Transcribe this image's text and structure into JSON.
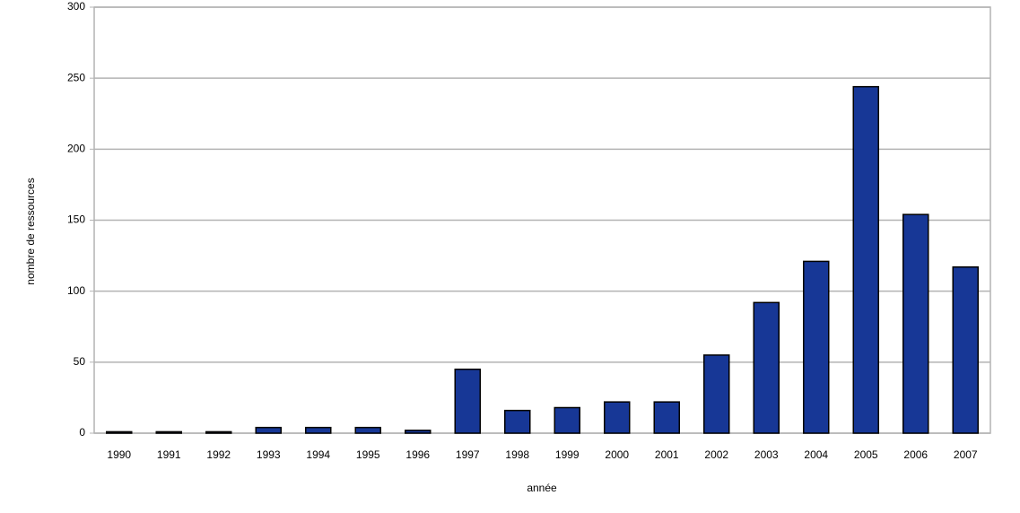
{
  "chart_data": {
    "type": "bar",
    "x_label": "année",
    "y_label": "nombre de ressources",
    "categories": [
      "1990",
      "1991",
      "1992",
      "1993",
      "1994",
      "1995",
      "1996",
      "1997",
      "1998",
      "1999",
      "2000",
      "2001",
      "2002",
      "2003",
      "2004",
      "2005",
      "2006",
      "2007"
    ],
    "values": [
      1,
      1,
      1,
      4,
      4,
      4,
      2,
      45,
      16,
      18,
      22,
      22,
      55,
      92,
      121,
      244,
      154,
      117
    ],
    "color": "#173796",
    "ylim": [
      0,
      300
    ],
    "yticks": [
      0,
      50,
      100,
      150,
      200,
      250,
      300
    ],
    "grid": true
  }
}
